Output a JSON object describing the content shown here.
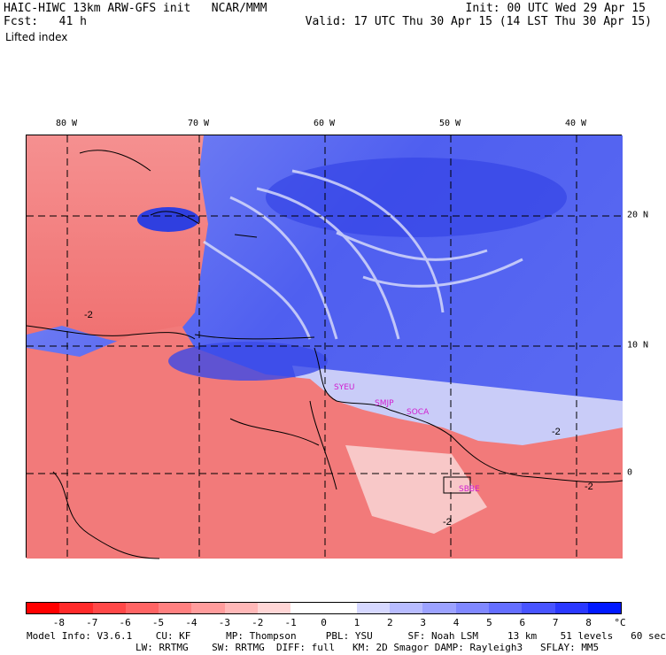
{
  "header": {
    "left_line1": "HAIC-HIWC 13km ARW-GFS init   NCAR/MMM",
    "left_line2": "Fcst:   41 h",
    "left_line3": "Lifted index",
    "right_line1": "Init: 00 UTC Wed 29 Apr 15",
    "right_line2": "Valid: 17 UTC Thu 30 Apr 15 (14 LST Thu 30 Apr 15)"
  },
  "map": {
    "lon_labels": [
      "80 W",
      "70 W",
      "60 W",
      "50 W",
      "40 W"
    ],
    "lat_labels": [
      "20 N",
      "10 N",
      "0"
    ],
    "contour_labels": [
      "-2",
      "-2",
      "-2",
      "-2"
    ],
    "stations": [
      "SYEU",
      "SMJP",
      "SOCA",
      "SBBE"
    ],
    "colors": {
      "warm": "#f07070",
      "cold": "#4f5ff0",
      "neutral": "#ffffff"
    }
  },
  "colorbar": {
    "labels": [
      "-8",
      "-7",
      "-6",
      "-5",
      "-4",
      "-3",
      "-2",
      "-1",
      "0",
      "1",
      "2",
      "3",
      "4",
      "5",
      "6",
      "7",
      "8"
    ],
    "unit": "°C",
    "colors": [
      "#ff0000",
      "#ff2a2a",
      "#ff4848",
      "#ff6464",
      "#ff8080",
      "#ff9c9c",
      "#ffb8b8",
      "#ffd6d6",
      "#ffffff",
      "#ffffff",
      "#d6d8ff",
      "#b8bcff",
      "#9ca2ff",
      "#8088ff",
      "#646eff",
      "#4854ff",
      "#2a38ff",
      "#0018ff"
    ]
  },
  "footer": {
    "line1": "Model Info: V3.6.1    CU: KF      MP: Thompson     PBL: YSU      SF: Noah LSM     13 km    51 levels   60 sec",
    "line2": "LW: RRTMG    SW: RRTMG  DIFF: full   KM: 2D Smagor DAMP: Rayleigh3   SFLAY: MM5"
  }
}
